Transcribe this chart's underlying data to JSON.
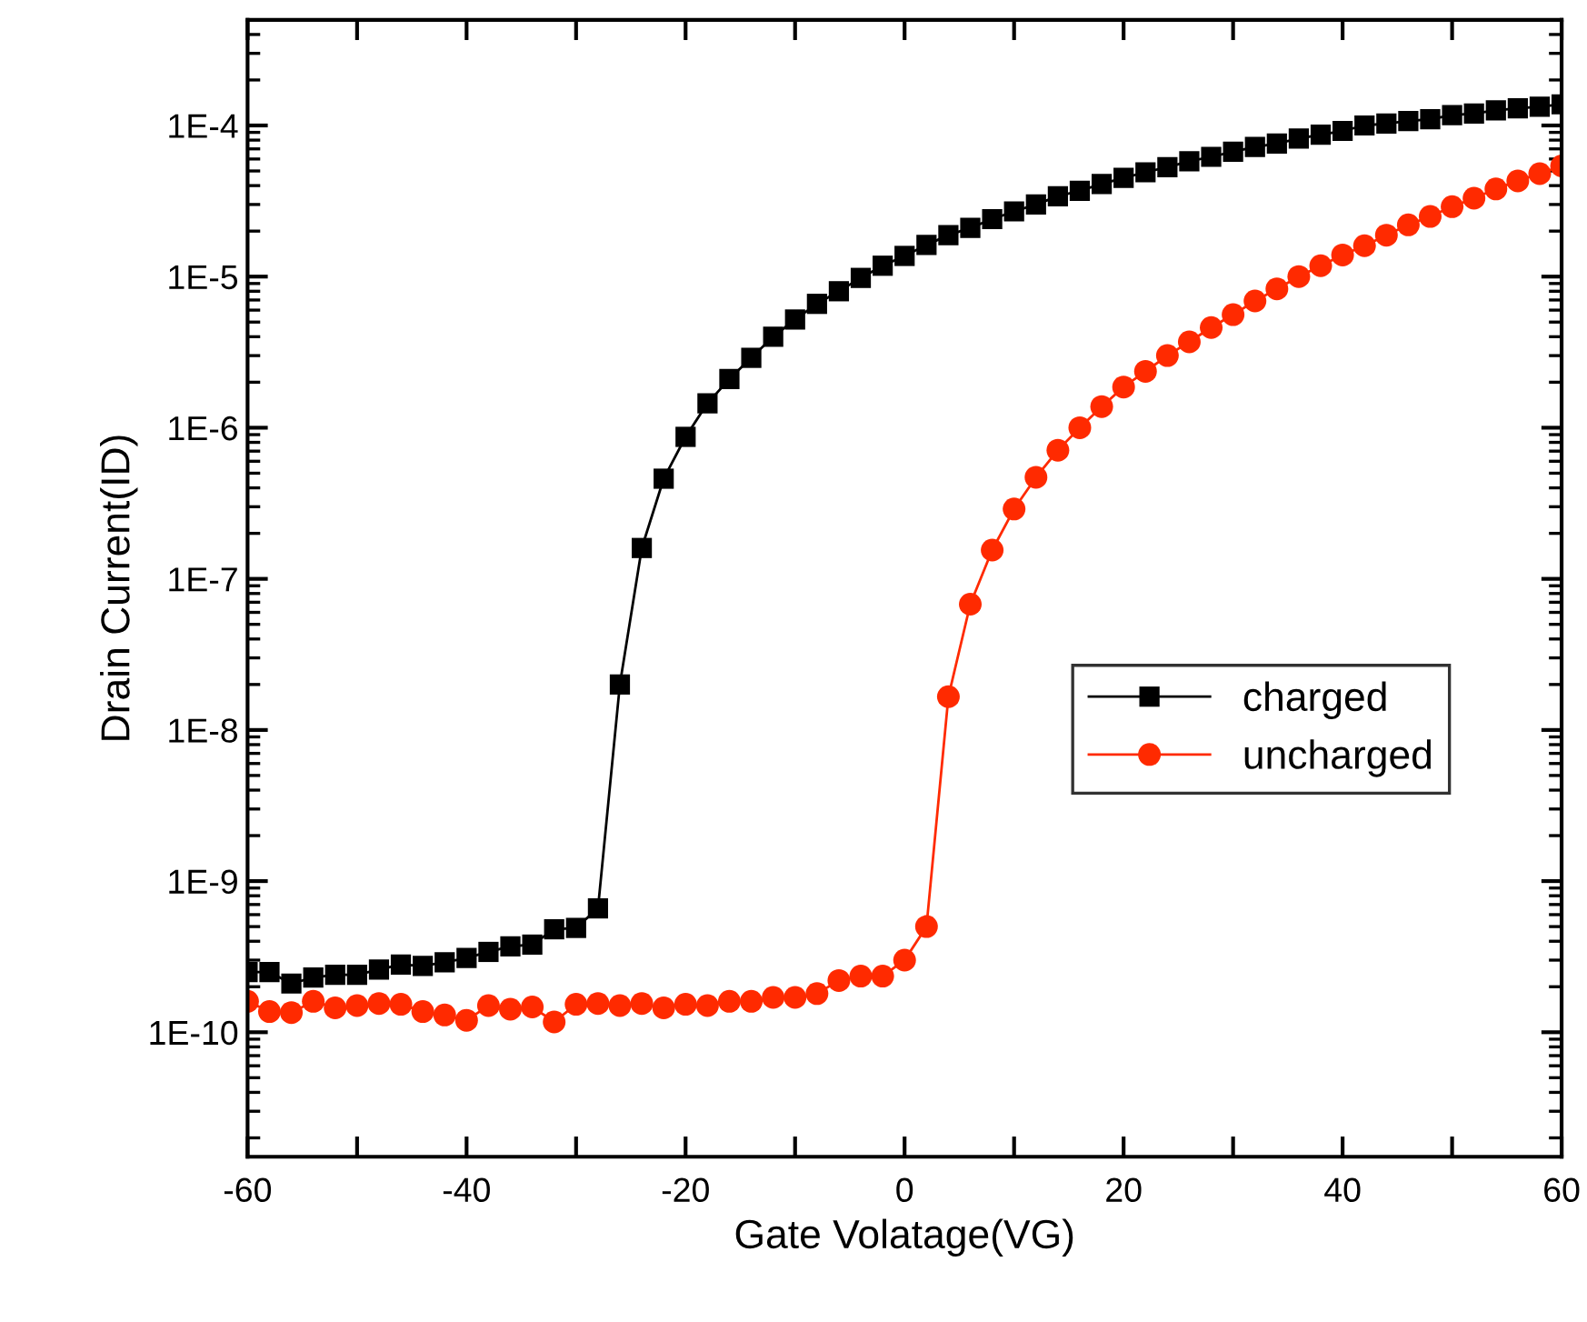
{
  "chart_data": {
    "type": "line",
    "xlabel": "Gate Volatage(VG)",
    "ylabel": "Drain Current(ID)",
    "x": [
      -60,
      -58,
      -56,
      -54,
      -52,
      -50,
      -48,
      -46,
      -44,
      -42,
      -40,
      -38,
      -36,
      -34,
      -32,
      -30,
      -28,
      -26,
      -24,
      -22,
      -20,
      -18,
      -16,
      -14,
      -12,
      -10,
      -8,
      -6,
      -4,
      -2,
      0,
      2,
      4,
      6,
      8,
      10,
      12,
      14,
      16,
      18,
      20,
      22,
      24,
      26,
      28,
      30,
      32,
      34,
      36,
      38,
      40,
      42,
      44,
      46,
      48,
      50,
      52,
      54,
      56,
      58,
      60
    ],
    "series": [
      {
        "name": "charged",
        "color": "#000000",
        "marker": "square",
        "values": [
          2.5e-10,
          2.5e-10,
          2.1e-10,
          2.3e-10,
          2.4e-10,
          2.4e-10,
          2.6e-10,
          2.8e-10,
          2.75e-10,
          2.9e-10,
          3.1e-10,
          3.4e-10,
          3.7e-10,
          3.8e-10,
          4.8e-10,
          4.9e-10,
          6.6e-10,
          2e-08,
          1.6e-07,
          4.6e-07,
          8.7e-07,
          1.45e-06,
          2.1e-06,
          2.9e-06,
          4e-06,
          5.2e-06,
          6.6e-06,
          8e-06,
          9.8e-06,
          1.18e-05,
          1.37e-05,
          1.62e-05,
          1.88e-05,
          2.1e-05,
          2.4e-05,
          2.7e-05,
          3e-05,
          3.4e-05,
          3.7e-05,
          4.1e-05,
          4.5e-05,
          4.9e-05,
          5.3e-05,
          5.8e-05,
          6.2e-05,
          6.7e-05,
          7.2e-05,
          7.6e-05,
          8.2e-05,
          8.7e-05,
          9.2e-05,
          0.0001,
          0.000103,
          0.000107,
          0.00011,
          0.000117,
          0.00012,
          0.000126,
          0.00013,
          0.000133,
          0.000138
        ]
      },
      {
        "name": "uncharged",
        "color": "#ff2a00",
        "marker": "circle",
        "values": [
          1.6e-10,
          1.37e-10,
          1.35e-10,
          1.6e-10,
          1.45e-10,
          1.5e-10,
          1.55e-10,
          1.53e-10,
          1.37e-10,
          1.3e-10,
          1.2e-10,
          1.5e-10,
          1.42e-10,
          1.47e-10,
          1.17e-10,
          1.53e-10,
          1.55e-10,
          1.5e-10,
          1.55e-10,
          1.45e-10,
          1.53e-10,
          1.5e-10,
          1.6e-10,
          1.6e-10,
          1.7e-10,
          1.7e-10,
          1.8e-10,
          2.2e-10,
          2.35e-10,
          2.35e-10,
          3e-10,
          5e-10,
          1.66e-08,
          6.8e-08,
          1.55e-07,
          2.9e-07,
          4.7e-07,
          7.1e-07,
          1e-06,
          1.38e-06,
          1.86e-06,
          2.36e-06,
          3e-06,
          3.7e-06,
          4.6e-06,
          5.6e-06,
          6.9e-06,
          8.3e-06,
          1e-05,
          1.18e-05,
          1.39e-05,
          1.6e-05,
          1.88e-05,
          2.2e-05,
          2.5e-05,
          2.9e-05,
          3.3e-05,
          3.8e-05,
          4.3e-05,
          4.8e-05,
          5.4e-05
        ]
      }
    ],
    "log": "y",
    "xlim": [
      -60,
      60
    ],
    "ylim": [
      1.5e-11,
      0.0005
    ],
    "xticks": [
      -60,
      {
        "value": -50,
        "label": null
      },
      -40,
      {
        "value": -30,
        "label": null
      },
      -20,
      {
        "value": -10,
        "label": null
      },
      0,
      {
        "value": 10,
        "label": null
      },
      20,
      {
        "value": 30,
        "label": null
      },
      40,
      {
        "value": 50,
        "label": null
      },
      60
    ],
    "yticks": [
      {
        "value": 1e-10,
        "label": "1E-10"
      },
      {
        "value": 1e-09,
        "label": "1E-9"
      },
      {
        "value": 1e-08,
        "label": "1E-8"
      },
      {
        "value": 1e-07,
        "label": "1E-7"
      },
      {
        "value": 1e-06,
        "label": "1E-6"
      },
      {
        "value": 1e-05,
        "label": "1E-5"
      },
      {
        "value": 0.0001,
        "label": "1E-4"
      }
    ],
    "grid": false,
    "legend": "right",
    "line_style": "solid"
  }
}
